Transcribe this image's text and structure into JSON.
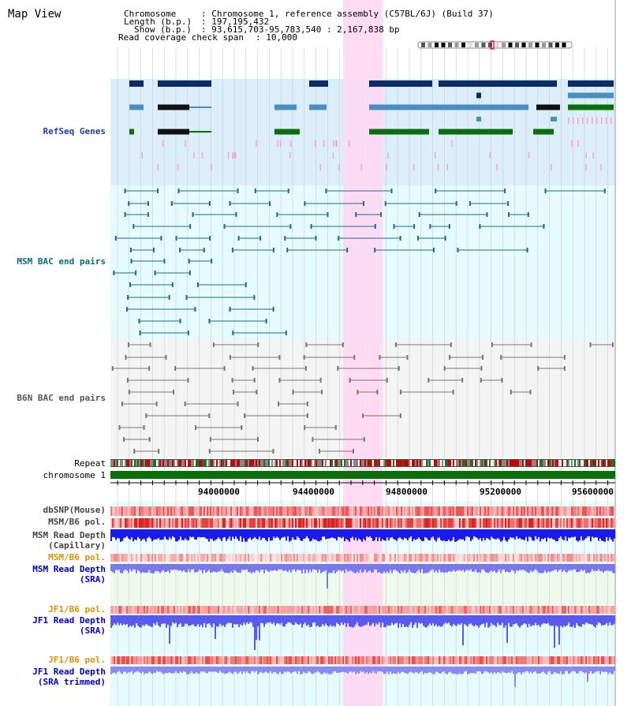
{
  "title": "Map View",
  "header": {
    "chromosome_label": "Chromosome",
    "chromosome_value": ": Chromosome 1, reference assembly (C57BL/6J) (Build 37)",
    "length_label": "Length (b.p.)",
    "length_value": ": 197,195,432",
    "show_label": "Show (b.p.)",
    "show_value": ": 93,615,703-95,783,540 : 2,167,838 bp",
    "coverage_label": "Read coverage check span",
    "coverage_value": ": 10,000"
  },
  "tracks": {
    "refseq": "RefSeq Genes",
    "msm_bac": "MSM BAC end pairs",
    "b6n_bac": "B6N BAC end pairs",
    "repeat": "Repeat",
    "chromosome": "chromosome 1",
    "dbsnp": "dbSNP(Mouse)",
    "msm_b6_pol": "MSM/B6 pol.",
    "msm_read_cap_1": "MSM Read Depth",
    "msm_read_cap_2": "(Capillary)",
    "msm_b6_pol2": "MSM/B6 pol.",
    "msm_read_sra_1": "MSM Read Depth",
    "msm_read_sra_2": "(SRA)",
    "jf1_b6_pol": "JF1/B6 pol.",
    "jf1_read_sra_1": "JF1 Read Depth",
    "jf1_read_sra_2": "(SRA)",
    "jf1_b6_pol2": "JF1/B6 pol.",
    "jf1_read_trim_1": "JF1 Read Depth",
    "jf1_read_trim_2": "(SRA trimmed)"
  },
  "ruler": {
    "ticks": [
      "94000000",
      "94400000",
      "94800000",
      "95200000",
      "95600000"
    ]
  },
  "colors": {
    "refseq_label": "#1f3fa8",
    "msm_label": "#00707a",
    "b6n_label": "#555555",
    "pol_orange": "#e09000",
    "depth_blue": "#0000cc",
    "highlight": "#ffd6f2",
    "chromosome_green": "#0a6e0a"
  }
}
